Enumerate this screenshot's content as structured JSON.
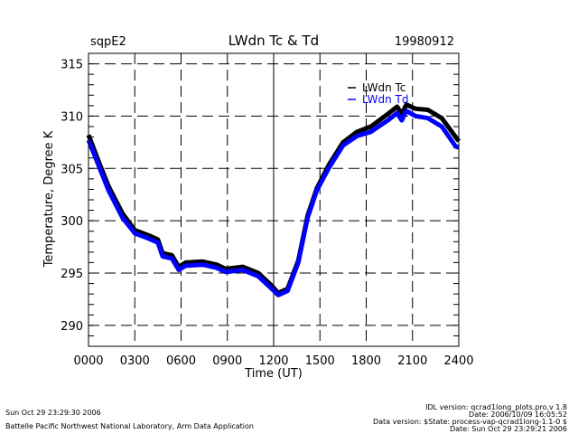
{
  "chart_data": {
    "type": "line",
    "title": "LWdn Tc & Td",
    "site": "sqpE2",
    "date": "19980912",
    "xlabel": "Time (UT)",
    "ylabel": "Temperature, Degree K",
    "xlim": [
      0,
      24
    ],
    "ylim": [
      288,
      316
    ],
    "x_ticks": [
      0,
      3,
      6,
      9,
      12,
      15,
      18,
      21,
      24
    ],
    "x_tick_labels": [
      "0000",
      "0300",
      "0600",
      "0900",
      "1200",
      "1500",
      "1800",
      "2100",
      "2400"
    ],
    "y_ticks": [
      290,
      295,
      300,
      305,
      310,
      315
    ],
    "y_tick_labels": [
      "290",
      "295",
      "300",
      "305",
      "310",
      "315"
    ],
    "grid": true,
    "legend_position": "top-right",
    "series": [
      {
        "name": "LWdn Tc",
        "color": "#000000",
        "x": [
          0,
          0.7,
          1.3,
          2.2,
          3,
          3.9,
          4.5,
          4.8,
          5.4,
          5.85,
          6.3,
          7.4,
          8.3,
          8.9,
          10,
          11,
          11.8,
          12.3,
          12.9,
          13.6,
          14.2,
          14.8,
          15.6,
          16.5,
          17.4,
          18.3,
          19.4,
          20,
          20.3,
          20.6,
          21.2,
          22,
          22.9,
          23.8,
          24
        ],
        "y": [
          308.2,
          305.5,
          303.3,
          300.7,
          299.1,
          298.6,
          298.2,
          296.9,
          296.7,
          295.6,
          296.0,
          296.1,
          295.8,
          295.4,
          295.6,
          295.0,
          293.9,
          293.1,
          293.5,
          296.2,
          300.5,
          303.1,
          305.4,
          307.5,
          308.5,
          309.0,
          310.2,
          310.9,
          310.2,
          311.1,
          310.7,
          310.6,
          309.8,
          308.0,
          307.6
        ]
      },
      {
        "name": "LWdn Td",
        "color": "#0000ff",
        "x": [
          0,
          0.7,
          1.3,
          2.2,
          3,
          3.9,
          4.5,
          4.8,
          5.4,
          5.85,
          6.3,
          7.4,
          8.3,
          8.9,
          10,
          11,
          11.8,
          12.3,
          12.9,
          13.6,
          14.2,
          14.8,
          15.6,
          16.5,
          17.4,
          18.3,
          19.4,
          20,
          20.3,
          20.6,
          21.2,
          22,
          22.9,
          23.8,
          24
        ],
        "y": [
          307.7,
          305.1,
          302.9,
          300.3,
          298.8,
          298.3,
          297.9,
          296.6,
          296.4,
          295.3,
          295.7,
          295.8,
          295.5,
          295.1,
          295.3,
          294.7,
          293.6,
          292.9,
          293.3,
          296.0,
          300.3,
          302.9,
          305.1,
          307.2,
          308.1,
          308.5,
          309.6,
          310.3,
          309.6,
          310.5,
          310.0,
          309.8,
          309.0,
          307.1,
          307.0
        ]
      }
    ]
  },
  "footer": {
    "timestamp": "Sun Oct 29 23:29:30 2006",
    "credit": "Battelle Pacific Northwest National Laboratory, Arm Data Application",
    "idl_version": "IDL version: qcrad1long_plots.pro,v 1.8",
    "idl_date": "Date: 2006/10/09 16:05:52",
    "data_version": "Data version: $State: process-vap-qcrad1long-1.1-0 $",
    "data_date": "Date: Sun Oct 29 23:29:21 2006"
  }
}
